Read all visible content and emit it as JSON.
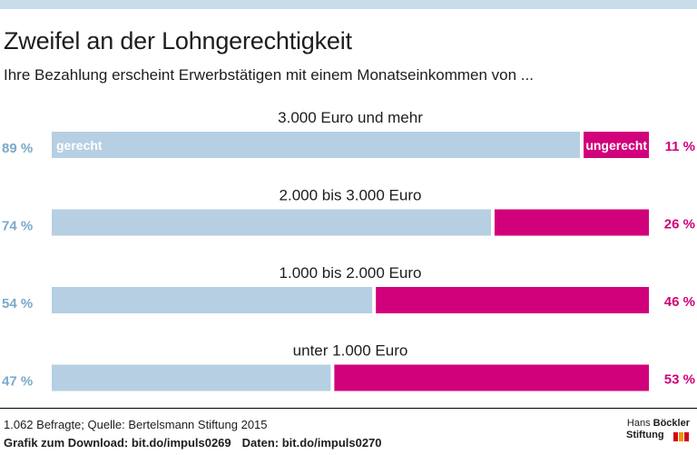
{
  "header": {
    "title": "Zweifel an der Lohngerechtigkeit",
    "subtitle": "Ihre Bezahlung erscheint Erwerbstätigen mit einem Monatseinkommen von ..."
  },
  "colors": {
    "gerecht": "#b6cfe2",
    "ungerecht": "#d1007b",
    "percent_left": "#7aa9c9",
    "percent_right": "#d1007b",
    "top_band": "#c9dcea",
    "logo_red": "#d0021b",
    "logo_orange": "#f39200"
  },
  "chart_data": {
    "type": "bar",
    "orientation": "horizontal",
    "stacked": true,
    "categories": [
      "3.000 Euro und mehr",
      "2.000 bis 3.000 Euro",
      "1.000 bis 2.000 Euro",
      "unter 1.000 Euro"
    ],
    "series": [
      {
        "name": "gerecht",
        "values": [
          89,
          74,
          54,
          47
        ]
      },
      {
        "name": "ungerecht",
        "values": [
          11,
          26,
          46,
          53
        ]
      }
    ],
    "value_labels_left": [
      "89 %",
      "74 %",
      "54 %",
      "47 %"
    ],
    "value_labels_right": [
      "11 %",
      "26 %",
      "46 %",
      "53 %"
    ],
    "unit": "%",
    "xlim": [
      0,
      100
    ],
    "legend": "inline labels in first bar"
  },
  "footer": {
    "source": "1.062 Befragte; Quelle: Bertelsmann Stiftung 2015",
    "download_prefix": "Grafik zum Download: bit.do/impuls0269",
    "data_link": "Daten: bit.do/impuls0270",
    "logo_line1_a": "Hans",
    "logo_line1_b": "Böckler",
    "logo_line2": "Stiftung"
  }
}
